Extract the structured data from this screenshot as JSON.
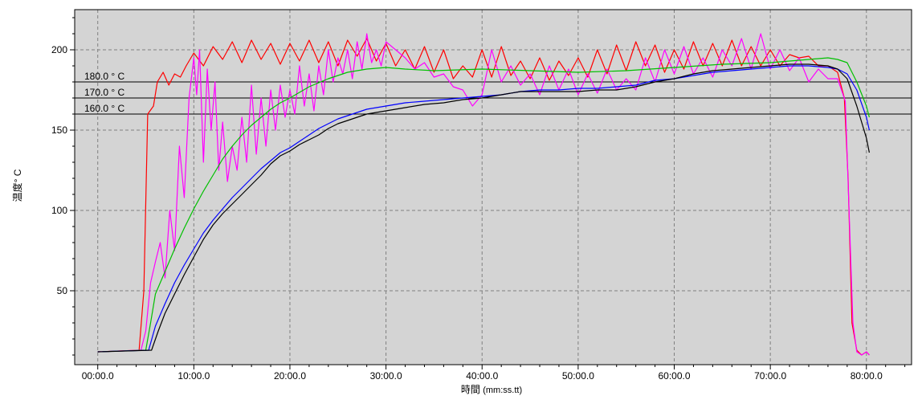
{
  "chart_data": {
    "type": "line",
    "title": "",
    "xlabel": "時間",
    "xlabel_unit": "(mm:ss.tt)",
    "ylabel": "温度° C",
    "xlim": [
      -2.4,
      84.7
    ],
    "ylim": [
      4,
      225
    ],
    "grid": true,
    "background": "#d4d4d4",
    "x_ticks": [
      {
        "value": 0,
        "label": "00:00.0"
      },
      {
        "value": 10,
        "label": "10:00.0"
      },
      {
        "value": 20,
        "label": "20:00.0"
      },
      {
        "value": 30,
        "label": "30:00.0"
      },
      {
        "value": 40,
        "label": "40:00.0"
      },
      {
        "value": 50,
        "label": "50:00.0"
      },
      {
        "value": 60,
        "label": "60:00.0"
      },
      {
        "value": 70,
        "label": "70:00.0"
      },
      {
        "value": 80,
        "label": "80:00.0"
      }
    ],
    "y_ticks": [
      {
        "value": 50,
        "label": "50"
      },
      {
        "value": 100,
        "label": "100"
      },
      {
        "value": 150,
        "label": "150"
      },
      {
        "value": 200,
        "label": "200"
      }
    ],
    "reference_lines": [
      {
        "value": 180,
        "label": "180.0 ° C"
      },
      {
        "value": 170,
        "label": "170.0 ° C"
      },
      {
        "value": 160,
        "label": "160.0 ° C"
      }
    ],
    "series": [
      {
        "color": "#ff0000",
        "x": [
          0,
          4.3,
          4.8,
          5.2,
          5.8,
          6.2,
          6.8,
          7.4,
          8,
          8.6,
          9.2,
          10,
          11,
          12,
          13,
          14,
          15,
          16,
          17,
          18,
          19,
          20,
          21,
          22,
          23,
          24,
          25,
          26,
          27,
          28,
          29,
          30,
          31,
          32,
          33,
          34,
          35,
          36,
          37,
          38,
          39,
          40,
          41,
          42,
          43,
          44,
          45,
          46,
          47,
          48,
          49,
          50,
          51,
          52,
          53,
          54,
          55,
          56,
          57,
          58,
          59,
          60,
          61,
          62,
          63,
          64,
          65,
          66,
          67,
          68,
          69,
          70,
          71,
          72,
          73,
          74,
          75,
          76,
          77,
          77.7,
          78.1,
          78.5,
          79,
          79.5,
          80,
          80.3
        ],
        "y": [
          12,
          13,
          50,
          160,
          165,
          180,
          186,
          178,
          185,
          183,
          190,
          198,
          190,
          202,
          194,
          205,
          192,
          206,
          194,
          204,
          191,
          204,
          193,
          206,
          192,
          205,
          190,
          206,
          196,
          207,
          193,
          204,
          190,
          200,
          188,
          202,
          186,
          200,
          182,
          190,
          183,
          200,
          183,
          202,
          184,
          193,
          182,
          195,
          181,
          193,
          184,
          195,
          183,
          200,
          185,
          203,
          187,
          205,
          190,
          203,
          186,
          200,
          188,
          205,
          190,
          204,
          190,
          206,
          190,
          202,
          190,
          200,
          190,
          197,
          195,
          196,
          190,
          190,
          186,
          170,
          120,
          30,
          13,
          10,
          12,
          10
        ]
      },
      {
        "color": "#ff00ff",
        "x": [
          0,
          4.5,
          5,
          5.5,
          6,
          6.5,
          7,
          7.5,
          8,
          8.5,
          9,
          9.5,
          10,
          10.3,
          10.6,
          11,
          11.4,
          11.8,
          12.2,
          12.6,
          13,
          13.5,
          14,
          14.5,
          15,
          15.5,
          16,
          16.5,
          17,
          17.5,
          18,
          18.5,
          19,
          19.5,
          20,
          20.5,
          21,
          21.5,
          22,
          22.5,
          23,
          23.5,
          24,
          24.5,
          25,
          25.5,
          26,
          26.5,
          27,
          27.5,
          28,
          28.5,
          29,
          29.5,
          30,
          31,
          32,
          33,
          34,
          35,
          36,
          37,
          38,
          39,
          40,
          41,
          42,
          43,
          44,
          45,
          46,
          47,
          48,
          49,
          50,
          51,
          52,
          53,
          54,
          55,
          56,
          57,
          58,
          59,
          60,
          61,
          62,
          63,
          64,
          65,
          66,
          67,
          68,
          69,
          70,
          71,
          72,
          73,
          74,
          75,
          76,
          77,
          77.4,
          77.8,
          78.2,
          78.6,
          79,
          79.5,
          80,
          80.3
        ],
        "y": [
          12,
          13,
          25,
          55,
          68,
          80,
          58,
          100,
          75,
          140,
          108,
          170,
          195,
          172,
          200,
          130,
          188,
          150,
          180,
          125,
          155,
          118,
          140,
          125,
          158,
          130,
          178,
          135,
          170,
          140,
          175,
          150,
          178,
          158,
          175,
          160,
          190,
          165,
          185,
          162,
          190,
          172,
          200,
          180,
          195,
          185,
          200,
          182,
          205,
          188,
          210,
          192,
          200,
          190,
          205,
          200,
          195,
          188,
          192,
          183,
          185,
          177,
          175,
          165,
          172,
          200,
          180,
          190,
          178,
          185,
          172,
          190,
          175,
          188,
          172,
          185,
          173,
          188,
          175,
          182,
          175,
          195,
          180,
          200,
          185,
          202,
          185,
          195,
          183,
          200,
          190,
          207,
          188,
          210,
          188,
          200,
          187,
          195,
          180,
          188,
          182,
          182,
          175,
          168,
          100,
          30,
          12,
          10,
          12,
          10
        ]
      },
      {
        "color": "#00c000",
        "x": [
          0,
          5,
          5.5,
          6,
          7,
          8,
          9,
          10,
          11,
          12,
          13,
          14,
          15,
          16,
          17,
          18,
          19,
          20,
          22,
          24,
          26,
          28,
          30,
          32,
          35,
          40,
          45,
          50,
          55,
          60,
          65,
          70,
          72,
          74,
          76,
          77,
          78,
          79,
          80,
          80.3
        ],
        "y": [
          12,
          13,
          30,
          48,
          62,
          76,
          89,
          101,
          112,
          122,
          132,
          140,
          147,
          153,
          158,
          163,
          167,
          170,
          177,
          182,
          186,
          188,
          189,
          188,
          187,
          188,
          187,
          186,
          187,
          189,
          191,
          192,
          193,
          194,
          195,
          194,
          192,
          180,
          165,
          158
        ]
      },
      {
        "color": "#0000ff",
        "x": [
          0,
          5.3,
          6,
          7,
          8,
          9,
          10,
          11,
          12,
          13,
          14,
          15,
          16,
          17,
          18,
          19,
          20,
          21,
          22,
          23,
          24,
          25,
          26,
          27,
          28,
          29,
          30,
          32,
          34,
          36,
          38,
          40,
          42,
          44,
          46,
          48,
          50,
          52,
          54,
          56,
          58,
          60,
          62,
          64,
          66,
          68,
          70,
          72,
          74,
          76,
          77,
          78,
          79,
          80,
          80.3
        ],
        "y": [
          12,
          13,
          28,
          42,
          55,
          66,
          76,
          86,
          94,
          101,
          108,
          114,
          120,
          126,
          131,
          136,
          139,
          143,
          147,
          151,
          154,
          157,
          159,
          161,
          163,
          164,
          165,
          167,
          168,
          169,
          170,
          171,
          172,
          174,
          175,
          175,
          176,
          176,
          177,
          178,
          181,
          182,
          184,
          186,
          187,
          188,
          189,
          190,
          190,
          189,
          188,
          185,
          175,
          158,
          150
        ]
      },
      {
        "color": "#000000",
        "x": [
          0,
          5.6,
          6.3,
          7,
          8,
          9,
          10,
          11,
          12,
          13,
          14,
          15,
          16,
          17,
          18,
          19,
          20,
          21,
          22,
          23,
          24,
          25,
          26,
          27,
          28,
          29,
          30,
          32,
          34,
          36,
          38,
          40,
          42,
          44,
          46,
          48,
          50,
          52,
          54,
          56,
          58,
          60,
          62,
          64,
          66,
          68,
          70,
          72,
          74,
          76,
          77,
          78,
          79,
          80,
          80.3
        ],
        "y": [
          12,
          13,
          25,
          36,
          48,
          60,
          71,
          82,
          91,
          98,
          104,
          110,
          116,
          122,
          129,
          134,
          137,
          141,
          144,
          147,
          151,
          154,
          156,
          158,
          160,
          161,
          162,
          164,
          166,
          167,
          169,
          170,
          172,
          174,
          174,
          174,
          174,
          175,
          175,
          177,
          180,
          182,
          185,
          187,
          188,
          189,
          190,
          191,
          191,
          190,
          188,
          182,
          165,
          145,
          136
        ]
      }
    ]
  }
}
